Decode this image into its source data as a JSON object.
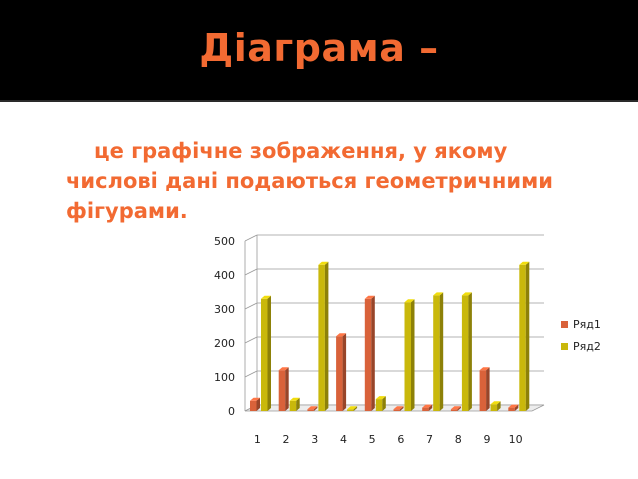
{
  "slide": {
    "title": "Діаграма –",
    "subtitle_lines": [
      "це графічне зображення, у якому",
      "числові дані подаються геометричними",
      "фігурами."
    ]
  },
  "chart_data": {
    "type": "bar",
    "categories": [
      "1",
      "2",
      "3",
      "4",
      "5",
      "6",
      "7",
      "8",
      "9",
      "10"
    ],
    "series": [
      {
        "name": "Ряд1",
        "color": "#d9623a",
        "values": [
          30,
          120,
          5,
          220,
          330,
          5,
          10,
          5,
          120,
          10
        ]
      },
      {
        "name": "Ряд2",
        "color": "#c9b80b",
        "values": [
          330,
          30,
          430,
          5,
          35,
          320,
          340,
          340,
          20,
          430
        ]
      }
    ],
    "ylim": [
      0,
      500
    ],
    "yticks": [
      0,
      100,
      200,
      300,
      400,
      500
    ],
    "grid": true,
    "legend": "right"
  }
}
